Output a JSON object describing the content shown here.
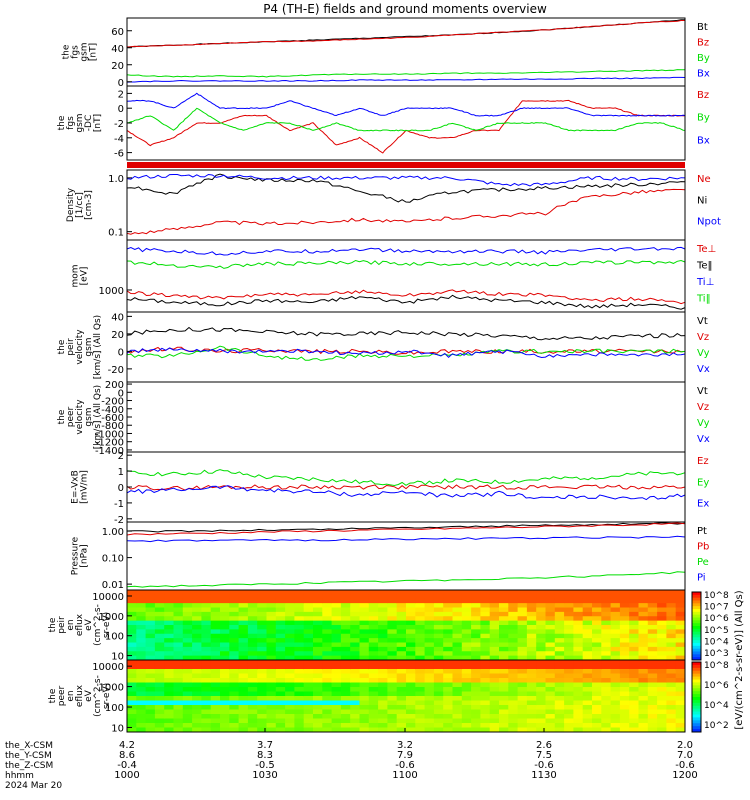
{
  "title": "P4 (TH-E) fields and ground moments overview",
  "colors": {
    "black": "#000000",
    "red": "#e00000",
    "green": "#00dd00",
    "blue": "#0000ff"
  },
  "footer": {
    "rows": [
      "the_X-CSM",
      "the_Y-CSM",
      "the_Z-CSM",
      "hhmm",
      "2024 Mar 20"
    ],
    "columns": [
      [
        "4.2",
        "3.7",
        "3.2",
        "2.6",
        "2.0"
      ],
      [
        "8.6",
        "8.3",
        "7.9",
        "7.5",
        "7.0"
      ],
      [
        "-0.4",
        "-0.5",
        "-0.6",
        "-0.6",
        "-0.6"
      ],
      [
        "1000",
        "1030",
        "1100",
        "1130",
        "1200"
      ]
    ]
  },
  "colorbar": {
    "label": "[eV/(cm^2-s-sr-eV)] (All Qs)",
    "panel1_ticks": [
      "10^8",
      "10^7",
      "10^6",
      "10^5",
      "10^4",
      "10^3"
    ],
    "panel2_ticks": [
      "10^8",
      "10^6",
      "10^4",
      "10^2"
    ]
  },
  "chart_data": [
    {
      "type": "line",
      "ylabel": [
        "the",
        "fgs",
        "gsm",
        "[nT]"
      ],
      "ylim": [
        -5,
        75
      ],
      "yticks": [
        "60",
        "40",
        "20",
        "0"
      ],
      "legend": [
        "Bt",
        "Bz",
        "By",
        "Bx"
      ],
      "series": [
        {
          "name": "Bt",
          "color": "black",
          "x": [
            0,
            10,
            20,
            30,
            40,
            50,
            60,
            70,
            80,
            90,
            100,
            110,
            120
          ],
          "values": [
            41,
            43,
            45,
            47,
            49,
            51,
            53,
            55,
            58,
            61,
            65,
            69,
            73
          ]
        },
        {
          "name": "Bz",
          "color": "red",
          "x": [
            0,
            10,
            20,
            30,
            40,
            50,
            60,
            70,
            80,
            90,
            100,
            110,
            120
          ],
          "values": [
            41,
            43,
            45,
            47,
            48,
            50,
            52,
            55,
            58,
            61,
            65,
            69,
            72
          ]
        },
        {
          "name": "By",
          "color": "green",
          "x": [
            0,
            10,
            20,
            30,
            40,
            50,
            60,
            70,
            80,
            90,
            100,
            110,
            120
          ],
          "values": [
            8,
            6,
            7,
            6,
            8,
            9,
            9,
            10,
            10,
            11,
            12,
            13,
            14
          ]
        },
        {
          "name": "Bx",
          "color": "blue",
          "x": [
            0,
            10,
            20,
            30,
            40,
            50,
            60,
            70,
            80,
            90,
            100,
            110,
            120
          ],
          "values": [
            0,
            1,
            1,
            1,
            1,
            2,
            2,
            2,
            3,
            3,
            4,
            4,
            5
          ]
        }
      ]
    },
    {
      "type": "line",
      "ylabel": [
        "the",
        "fgs",
        "gsm",
        "-DC",
        "[nT]"
      ],
      "ylim": [
        -7,
        3
      ],
      "yticks": [
        "2",
        "0",
        "-2",
        "-4",
        "-6"
      ],
      "legend": [
        "Bz",
        "By",
        "Bx"
      ],
      "series": [
        {
          "name": "Bz",
          "color": "red",
          "x": [
            0,
            5,
            10,
            15,
            20,
            25,
            30,
            35,
            40,
            45,
            50,
            55,
            60,
            65,
            70,
            75,
            80,
            85,
            90,
            95,
            100,
            105,
            110,
            115,
            120
          ],
          "values": [
            -3,
            -5,
            -4,
            -2,
            -2,
            -1,
            -1,
            -3,
            -2,
            -5,
            -4,
            -6,
            -3,
            -4,
            -4,
            -3,
            -3,
            1,
            1,
            1,
            0,
            0,
            -1,
            -1,
            -1
          ]
        },
        {
          "name": "By",
          "color": "green",
          "x": [
            0,
            5,
            10,
            15,
            20,
            25,
            30,
            35,
            40,
            45,
            50,
            55,
            60,
            65,
            70,
            75,
            80,
            85,
            90,
            95,
            100,
            105,
            110,
            115,
            120
          ],
          "values": [
            -2,
            -1,
            -3,
            0,
            -2,
            -3,
            -2,
            -2,
            -3,
            -2,
            -3,
            -3,
            -3,
            -3,
            -2,
            -3,
            -2,
            -2,
            -2,
            -3,
            -3,
            -3,
            -2,
            -2,
            -3
          ]
        },
        {
          "name": "Bx",
          "color": "blue",
          "x": [
            0,
            5,
            10,
            15,
            20,
            25,
            30,
            35,
            40,
            45,
            50,
            55,
            60,
            65,
            70,
            75,
            80,
            85,
            90,
            95,
            100,
            105,
            110,
            115,
            120
          ],
          "values": [
            1,
            1,
            0,
            2,
            0,
            0,
            0,
            1,
            0,
            -1,
            0,
            -1,
            0,
            0,
            0,
            -1,
            -1,
            0,
            0,
            0,
            -1,
            -1,
            -1,
            -1,
            -1
          ]
        }
      ]
    },
    {
      "type": "line",
      "ylabel": [
        "Density",
        "[1/cc]",
        "[cm-3]"
      ],
      "yscale": "log",
      "ylim": [
        0.07,
        1.4
      ],
      "yticks": [
        "1.0",
        "0.1"
      ],
      "legend": [
        "Ne",
        "Ni",
        "Npot"
      ],
      "series": [
        {
          "name": "Ne",
          "color": "red",
          "x": [
            0,
            10,
            20,
            30,
            40,
            50,
            60,
            70,
            80,
            90,
            100,
            110,
            120
          ],
          "values": [
            0.09,
            0.11,
            0.15,
            0.14,
            0.15,
            0.17,
            0.15,
            0.18,
            0.2,
            0.22,
            0.45,
            0.55,
            0.6
          ]
        },
        {
          "name": "Ni",
          "color": "black",
          "x": [
            0,
            10,
            20,
            30,
            40,
            50,
            60,
            70,
            80,
            90,
            100,
            110,
            120
          ],
          "values": [
            0.7,
            0.5,
            1.1,
            0.9,
            0.9,
            0.55,
            0.35,
            0.55,
            0.6,
            0.65,
            0.7,
            0.75,
            0.85
          ]
        },
        {
          "name": "Npot",
          "color": "blue",
          "x": [
            0,
            10,
            20,
            30,
            40,
            50,
            60,
            70,
            80,
            90,
            100,
            110,
            120
          ],
          "values": [
            1.0,
            1.1,
            1.1,
            1.0,
            1.0,
            1.0,
            1.0,
            1.0,
            0.75,
            0.75,
            1.0,
            0.95,
            1.0
          ]
        }
      ]
    },
    {
      "type": "line",
      "ylabel": [
        "mom",
        "[eV]"
      ],
      "yscale": "log",
      "ylim": [
        400,
        8000
      ],
      "yticks": [
        "1000"
      ],
      "legend": [
        "Te⊥",
        "Te‖",
        "Ti⊥",
        "Ti‖"
      ],
      "series": [
        {
          "name": "Te⊥",
          "color": "red",
          "x": [
            0,
            10,
            20,
            30,
            40,
            50,
            60,
            70,
            80,
            90,
            100,
            110,
            120
          ],
          "values": [
            900,
            800,
            700,
            850,
            800,
            950,
            800,
            950,
            850,
            800,
            650,
            700,
            600
          ]
        },
        {
          "name": "Te‖",
          "color": "black",
          "x": [
            0,
            10,
            20,
            30,
            40,
            50,
            60,
            70,
            80,
            90,
            100,
            110,
            120
          ],
          "values": [
            700,
            600,
            550,
            650,
            600,
            750,
            600,
            750,
            650,
            600,
            500,
            550,
            480
          ]
        },
        {
          "name": "Ti⊥",
          "color": "blue",
          "x": [
            0,
            10,
            20,
            30,
            40,
            50,
            60,
            70,
            80,
            90,
            100,
            110,
            120
          ],
          "values": [
            5500,
            5000,
            4500,
            5000,
            5000,
            5500,
            5000,
            5000,
            5000,
            4800,
            5200,
            5500,
            5500
          ]
        },
        {
          "name": "Ti‖",
          "color": "green",
          "x": [
            0,
            10,
            20,
            30,
            40,
            50,
            60,
            70,
            80,
            90,
            100,
            110,
            120
          ],
          "values": [
            3200,
            2800,
            2600,
            3000,
            3000,
            3200,
            3000,
            3000,
            3000,
            2900,
            3100,
            3200,
            3200
          ]
        }
      ]
    },
    {
      "type": "line",
      "ylabel": [
        "the",
        "peir",
        "velocity",
        "gsm",
        "[km/s] (All Qs)"
      ],
      "ylim": [
        -35,
        45
      ],
      "yticks": [
        "40",
        "20",
        "0",
        "-20"
      ],
      "legend": [
        "Vt",
        "Vz",
        "Vy",
        "Vx"
      ],
      "series": [
        {
          "name": "Vt",
          "color": "black",
          "x": [
            0,
            10,
            20,
            30,
            40,
            50,
            60,
            70,
            80,
            90,
            100,
            110,
            120
          ],
          "values": [
            20,
            25,
            25,
            22,
            20,
            20,
            22,
            20,
            18,
            15,
            15,
            18,
            18
          ]
        },
        {
          "name": "Vz",
          "color": "red",
          "x": [
            0,
            10,
            20,
            30,
            40,
            50,
            60,
            70,
            80,
            90,
            100,
            110,
            120
          ],
          "values": [
            0,
            3,
            0,
            2,
            0,
            0,
            -2,
            0,
            0,
            0,
            0,
            0,
            0
          ]
        },
        {
          "name": "Vy",
          "color": "green",
          "x": [
            0,
            10,
            20,
            30,
            40,
            50,
            60,
            70,
            80,
            90,
            100,
            110,
            120
          ],
          "values": [
            -5,
            -5,
            5,
            -5,
            -10,
            -5,
            -5,
            -5,
            0,
            0,
            0,
            0,
            0
          ]
        },
        {
          "name": "Vx",
          "color": "blue",
          "x": [
            0,
            10,
            20,
            30,
            40,
            50,
            60,
            70,
            80,
            90,
            100,
            110,
            120
          ],
          "values": [
            0,
            2,
            0,
            0,
            0,
            -3,
            0,
            -5,
            0,
            -5,
            -3,
            -5,
            -3
          ]
        }
      ]
    },
    {
      "type": "line",
      "ylabel": [
        "the",
        "peer",
        "velocity",
        "gsm",
        "[km/s] (All Qs)"
      ],
      "ylim": [
        -1450,
        250
      ],
      "yticks": [
        "200",
        "0",
        "-200",
        "-400",
        "-600",
        "-800",
        "-1000",
        "-1200",
        "-1400"
      ],
      "legend": [
        "Vt",
        "Vz",
        "Vy",
        "Vx"
      ],
      "series": []
    },
    {
      "type": "line",
      "ylabel": [
        "E=-VxB",
        "[mV/m]"
      ],
      "ylim": [
        -2.2,
        2.2
      ],
      "yticks": [
        "2",
        "1",
        "0",
        "-1",
        "-2"
      ],
      "legend": [
        "Ez",
        "Ey",
        "Ex"
      ],
      "series": [
        {
          "name": "Ez",
          "color": "red",
          "x": [
            0,
            10,
            20,
            30,
            40,
            50,
            60,
            70,
            80,
            90,
            100,
            110,
            120
          ],
          "values": [
            0,
            -0.1,
            0,
            0,
            0,
            0,
            0,
            0,
            0,
            0,
            0,
            0,
            0
          ]
        },
        {
          "name": "Ey",
          "color": "green",
          "x": [
            0,
            10,
            20,
            30,
            40,
            50,
            60,
            70,
            80,
            90,
            100,
            110,
            120
          ],
          "values": [
            0.9,
            0.8,
            1.0,
            0.6,
            0.5,
            0.3,
            0.2,
            0.4,
            0.3,
            0.5,
            0.6,
            0.8,
            0.9
          ]
        },
        {
          "name": "Ex",
          "color": "blue",
          "x": [
            0,
            10,
            20,
            30,
            40,
            50,
            60,
            70,
            80,
            90,
            100,
            110,
            120
          ],
          "values": [
            -0.3,
            -0.2,
            0,
            -0.2,
            -0.3,
            -0.5,
            -0.3,
            -0.6,
            -0.4,
            -0.7,
            -0.6,
            -0.8,
            -0.5
          ]
        }
      ]
    },
    {
      "type": "line",
      "ylabel": [
        "Pressure",
        "[nPa]"
      ],
      "yscale": "log",
      "ylim": [
        0.006,
        2.2
      ],
      "yticks": [
        "1.00",
        "0.10",
        "0.01"
      ],
      "legend": [
        "Pt",
        "Pb",
        "Pe",
        "Pi"
      ],
      "series": [
        {
          "name": "Pt",
          "color": "black",
          "x": [
            0,
            20,
            40,
            60,
            80,
            100,
            120
          ],
          "values": [
            0.95,
            1.05,
            1.15,
            1.35,
            1.55,
            1.75,
            2.0
          ]
        },
        {
          "name": "Pb",
          "color": "red",
          "x": [
            0,
            20,
            40,
            60,
            80,
            100,
            120
          ],
          "values": [
            0.75,
            0.85,
            1.0,
            1.15,
            1.35,
            1.6,
            1.9
          ]
        },
        {
          "name": "Pe",
          "color": "green",
          "x": [
            0,
            20,
            40,
            60,
            80,
            100,
            120
          ],
          "values": [
            0.008,
            0.009,
            0.011,
            0.013,
            0.016,
            0.02,
            0.028
          ]
        },
        {
          "name": "Pi",
          "color": "blue",
          "x": [
            0,
            20,
            40,
            60,
            80,
            100,
            120
          ],
          "values": [
            0.42,
            0.44,
            0.46,
            0.5,
            0.53,
            0.57,
            0.6
          ]
        }
      ]
    },
    {
      "type": "heatmap",
      "ylabel": [
        "the",
        "peir",
        "en",
        "eflux",
        "eV",
        "(cm^2-s-",
        "sr-eV)"
      ],
      "yscale": "log",
      "ylim": [
        6,
        20000
      ],
      "yticks": [
        "10000",
        "1000",
        "100",
        "10"
      ]
    },
    {
      "type": "heatmap",
      "ylabel": [
        "the",
        "peer",
        "en",
        "eflux",
        "eV",
        "(cm^2-s-",
        "sr-eV)"
      ],
      "yscale": "log",
      "ylim": [
        6,
        20000
      ],
      "yticks": [
        "10000",
        "1000",
        "100",
        "10"
      ]
    }
  ]
}
